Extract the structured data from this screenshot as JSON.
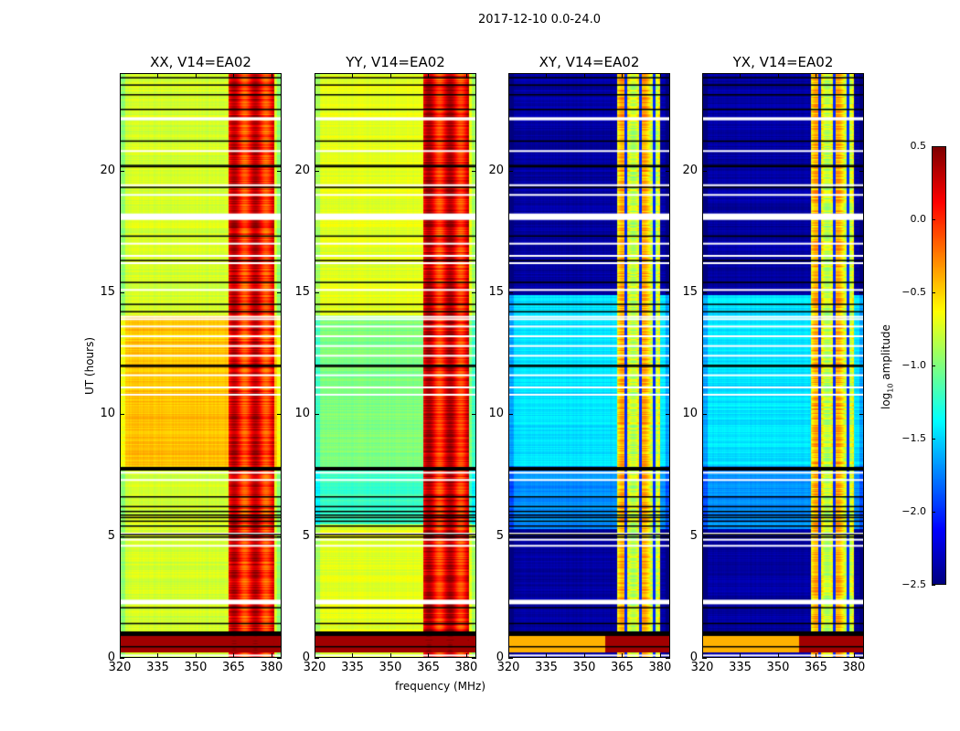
{
  "figure": {
    "suptitle": "2017-12-10 0.0-24.0",
    "xlabel": "frequency (MHz)",
    "ylabel": "UT (hours)",
    "colorbar": {
      "label_prefix": "log",
      "label_sub": "10",
      "label_suffix": " amplitude",
      "ticks": [
        "0.5",
        "0.0",
        "−0.5",
        "−1.0",
        "−1.5",
        "−2.0",
        "−2.5"
      ],
      "range": [
        -2.5,
        0.5
      ],
      "colormap": "jet"
    }
  },
  "chart_data": [
    {
      "type": "heatmap",
      "title": "XX, V14=EA02",
      "xlabel": "frequency (MHz)",
      "ylabel": "UT (hours)",
      "x_range": [
        320,
        384
      ],
      "y_range": [
        0,
        24
      ],
      "xticks": [
        "320",
        "335",
        "350",
        "365",
        "380"
      ],
      "yticks": [
        "0",
        "5",
        "10",
        "15",
        "20"
      ],
      "zlabel": "log10 amplitude",
      "z_range": [
        -2.5,
        0.5
      ],
      "baseline_level_by_ut": [
        {
          "ut": [
            0,
            7.8
          ],
          "value": -0.75
        },
        {
          "ut": [
            7.8,
            14.1
          ],
          "value": -0.45
        },
        {
          "ut": [
            14.1,
            24
          ],
          "value": -0.75
        }
      ],
      "rfi_band_mhz": [
        363,
        381
      ],
      "rfi_level": 0.1
    },
    {
      "type": "heatmap",
      "title": "YY, V14=EA02",
      "xlabel": "frequency (MHz)",
      "ylabel": "UT (hours)",
      "x_range": [
        320,
        384
      ],
      "y_range": [
        0,
        24
      ],
      "xticks": [
        "320",
        "335",
        "350",
        "365",
        "380"
      ],
      "yticks": [
        "0",
        "5",
        "10",
        "15",
        "20"
      ],
      "zlabel": "log10 amplitude",
      "z_range": [
        -2.5,
        0.5
      ],
      "baseline_level_by_ut": [
        {
          "ut": [
            0,
            5.5
          ],
          "value": -0.7
        },
        {
          "ut": [
            5.5,
            7.8
          ],
          "value": -1.2
        },
        {
          "ut": [
            7.8,
            14.1
          ],
          "value": -1.0
        },
        {
          "ut": [
            14.1,
            24
          ],
          "value": -0.7
        }
      ],
      "rfi_band_mhz": [
        363,
        381
      ],
      "rfi_level": 0.15
    },
    {
      "type": "heatmap",
      "title": "XY, V14=EA02",
      "xlabel": "frequency (MHz)",
      "ylabel": "UT (hours)",
      "x_range": [
        320,
        384
      ],
      "y_range": [
        0,
        24
      ],
      "xticks": [
        "320",
        "335",
        "350",
        "365",
        "380"
      ],
      "yticks": [
        "0",
        "5",
        "10",
        "15",
        "20"
      ],
      "zlabel": "log10 amplitude",
      "z_range": [
        -2.5,
        0.5
      ],
      "baseline_level_by_ut": [
        {
          "ut": [
            0,
            5.3
          ],
          "value": -2.4
        },
        {
          "ut": [
            5.3,
            7.9
          ],
          "value": -1.7
        },
        {
          "ut": [
            7.9,
            14.9
          ],
          "value": -1.45
        },
        {
          "ut": [
            14.9,
            24
          ],
          "value": -2.4
        }
      ],
      "rfi_band_mhz": [
        363,
        380
      ],
      "rfi_level": -0.6
    },
    {
      "type": "heatmap",
      "title": "YX, V14=EA02",
      "xlabel": "frequency (MHz)",
      "ylabel": "UT (hours)",
      "x_range": [
        320,
        384
      ],
      "y_range": [
        0,
        24
      ],
      "xticks": [
        "320",
        "335",
        "350",
        "365",
        "380"
      ],
      "yticks": [
        "0",
        "5",
        "10",
        "15",
        "20"
      ],
      "zlabel": "log10 amplitude",
      "z_range": [
        -2.5,
        0.5
      ],
      "baseline_level_by_ut": [
        {
          "ut": [
            0,
            5.3
          ],
          "value": -2.4
        },
        {
          "ut": [
            5.3,
            7.9
          ],
          "value": -1.7
        },
        {
          "ut": [
            7.9,
            14.9
          ],
          "value": -1.45
        },
        {
          "ut": [
            14.9,
            24
          ],
          "value": -2.4
        }
      ],
      "rfi_band_mhz": [
        363,
        380
      ],
      "rfi_level": -0.6
    }
  ],
  "flagged_ut_hours": {
    "white_gaps": [
      0.1,
      2.3,
      2.35,
      4.6,
      4.85,
      5.1,
      7.3,
      7.6,
      10.8,
      11.1,
      11.6,
      12.4,
      12.8,
      13.2,
      13.6,
      13.9,
      14.0,
      15.1,
      16.2,
      16.5,
      17.0,
      18.05,
      18.2,
      19.0,
      19.4,
      20.8,
      22.1,
      22.15
    ],
    "black_lines": [
      0.45,
      1.0,
      1.05,
      1.4,
      2.05,
      4.95,
      5.05,
      5.4,
      5.6,
      5.75,
      5.85,
      6.0,
      6.2,
      6.6,
      7.75,
      7.8,
      11.95,
      12.0,
      14.2,
      14.5,
      15.4,
      16.3,
      17.3,
      19.3,
      20.15,
      20.2,
      21.2,
      22.5,
      23.1,
      23.5,
      23.8
    ]
  }
}
